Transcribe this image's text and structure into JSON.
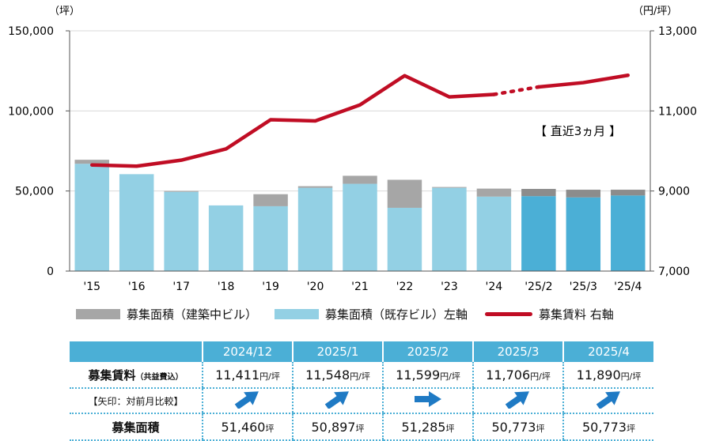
{
  "chart_data": {
    "type": "bar",
    "stacked": true,
    "categories": [
      "'15",
      "'16",
      "'17",
      "'18",
      "'19",
      "'20",
      "'21",
      "'22",
      "'23",
      "'24",
      "'25/2",
      "'25/3",
      "'25/4"
    ],
    "series": [
      {
        "name": "募集面積（既存ビル）左軸",
        "axis": "left",
        "type": "bar",
        "values": [
          67000,
          60500,
          49500,
          41000,
          40500,
          52000,
          54500,
          39500,
          52000,
          46500,
          46800,
          46000,
          47200
        ],
        "colors": [
          "#93d0e4",
          "#93d0e4",
          "#93d0e4",
          "#93d0e4",
          "#93d0e4",
          "#93d0e4",
          "#93d0e4",
          "#93d0e4",
          "#93d0e4",
          "#93d0e4",
          "#4bafd6",
          "#4bafd6",
          "#4bafd6"
        ]
      },
      {
        "name": "募集面積（建築中ビル）",
        "axis": "left",
        "type": "bar",
        "values": [
          2500,
          0,
          500,
          0,
          7500,
          1000,
          5000,
          17500,
          500,
          5000,
          4500,
          4800,
          3600
        ],
        "colors": [
          "#a6a6a6",
          "#a6a6a6",
          "#a6a6a6",
          "#a6a6a6",
          "#a6a6a6",
          "#a6a6a6",
          "#a6a6a6",
          "#a6a6a6",
          "#a6a6a6",
          "#a6a6a6",
          "#8c8c8c",
          "#8c8c8c",
          "#8c8c8c"
        ]
      },
      {
        "name": "募集賃料 右軸",
        "axis": "right",
        "type": "line",
        "color": "#c00d24",
        "values": [
          9650,
          9620,
          9770,
          10050,
          10780,
          10750,
          11150,
          11880,
          11350,
          11411,
          11599,
          11706,
          11890
        ],
        "dotted_between": [
          9,
          10
        ]
      }
    ],
    "left_axis": {
      "unit": "（坪）",
      "ylim": [
        0,
        150000
      ],
      "ticks": [
        "0",
        "50,000",
        "100,000",
        "150,000"
      ]
    },
    "right_axis": {
      "unit": "（円/坪）",
      "ylim": [
        7000,
        13000
      ],
      "ticks": [
        "7,000",
        "9,000",
        "11,000",
        "13,000"
      ]
    },
    "annotation": "【 直近3ヵ月 】",
    "grid": true,
    "legend_position": "bottom"
  },
  "legend": {
    "building": "募集面積（建築中ビル）",
    "existing": "募集面積（既存ビル）左軸",
    "rent": "募集賃料 右軸"
  },
  "table": {
    "months": [
      "2024/12",
      "2025/1",
      "2025/2",
      "2025/3",
      "2025/4"
    ],
    "rent_label": "募集賃料",
    "rent_note": "（共益費込）",
    "rent_values": [
      "11,411",
      "11,548",
      "11,599",
      "11,706",
      "11,890"
    ],
    "rent_unit": "円/坪",
    "arrow_label": "【矢印：対前月比較】",
    "arrows": [
      "up",
      "up",
      "flat",
      "up",
      "up"
    ],
    "area_label": "募集面積",
    "area_values": [
      "51,460",
      "50,897",
      "51,285",
      "50,773",
      "50,773"
    ],
    "area_unit": "坪"
  },
  "colors": {
    "accent": "#4bafd6",
    "existing_light": "#93d0e4",
    "existing_recent": "#4bafd6",
    "building_gray": "#a6a6a6",
    "building_recent": "#8c8c8c",
    "rent_line": "#c00d24",
    "arrow_blue": "#1f7ac4"
  }
}
